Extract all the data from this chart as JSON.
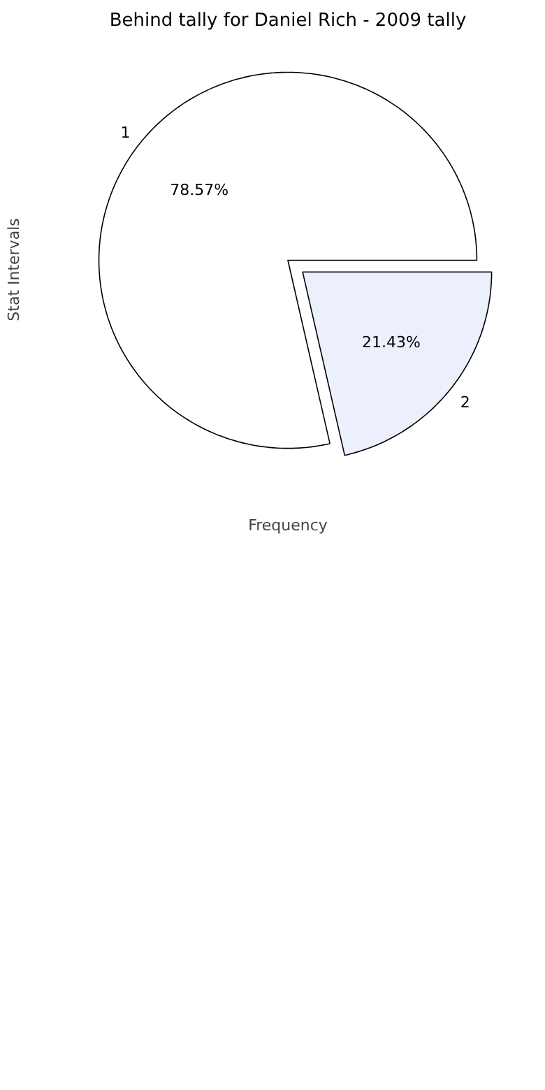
{
  "chart_data": {
    "type": "pie",
    "title": "Behind tally for Daniel Rich - 2009 tally",
    "xlabel": "Frequency",
    "ylabel": "Stat Intervals",
    "categories": [
      "1",
      "2"
    ],
    "values": [
      78.57,
      21.43
    ],
    "colors": [
      "#ffffff",
      "#ebf0fc"
    ],
    "value_labels": [
      "78.57%",
      "21.43%"
    ]
  }
}
